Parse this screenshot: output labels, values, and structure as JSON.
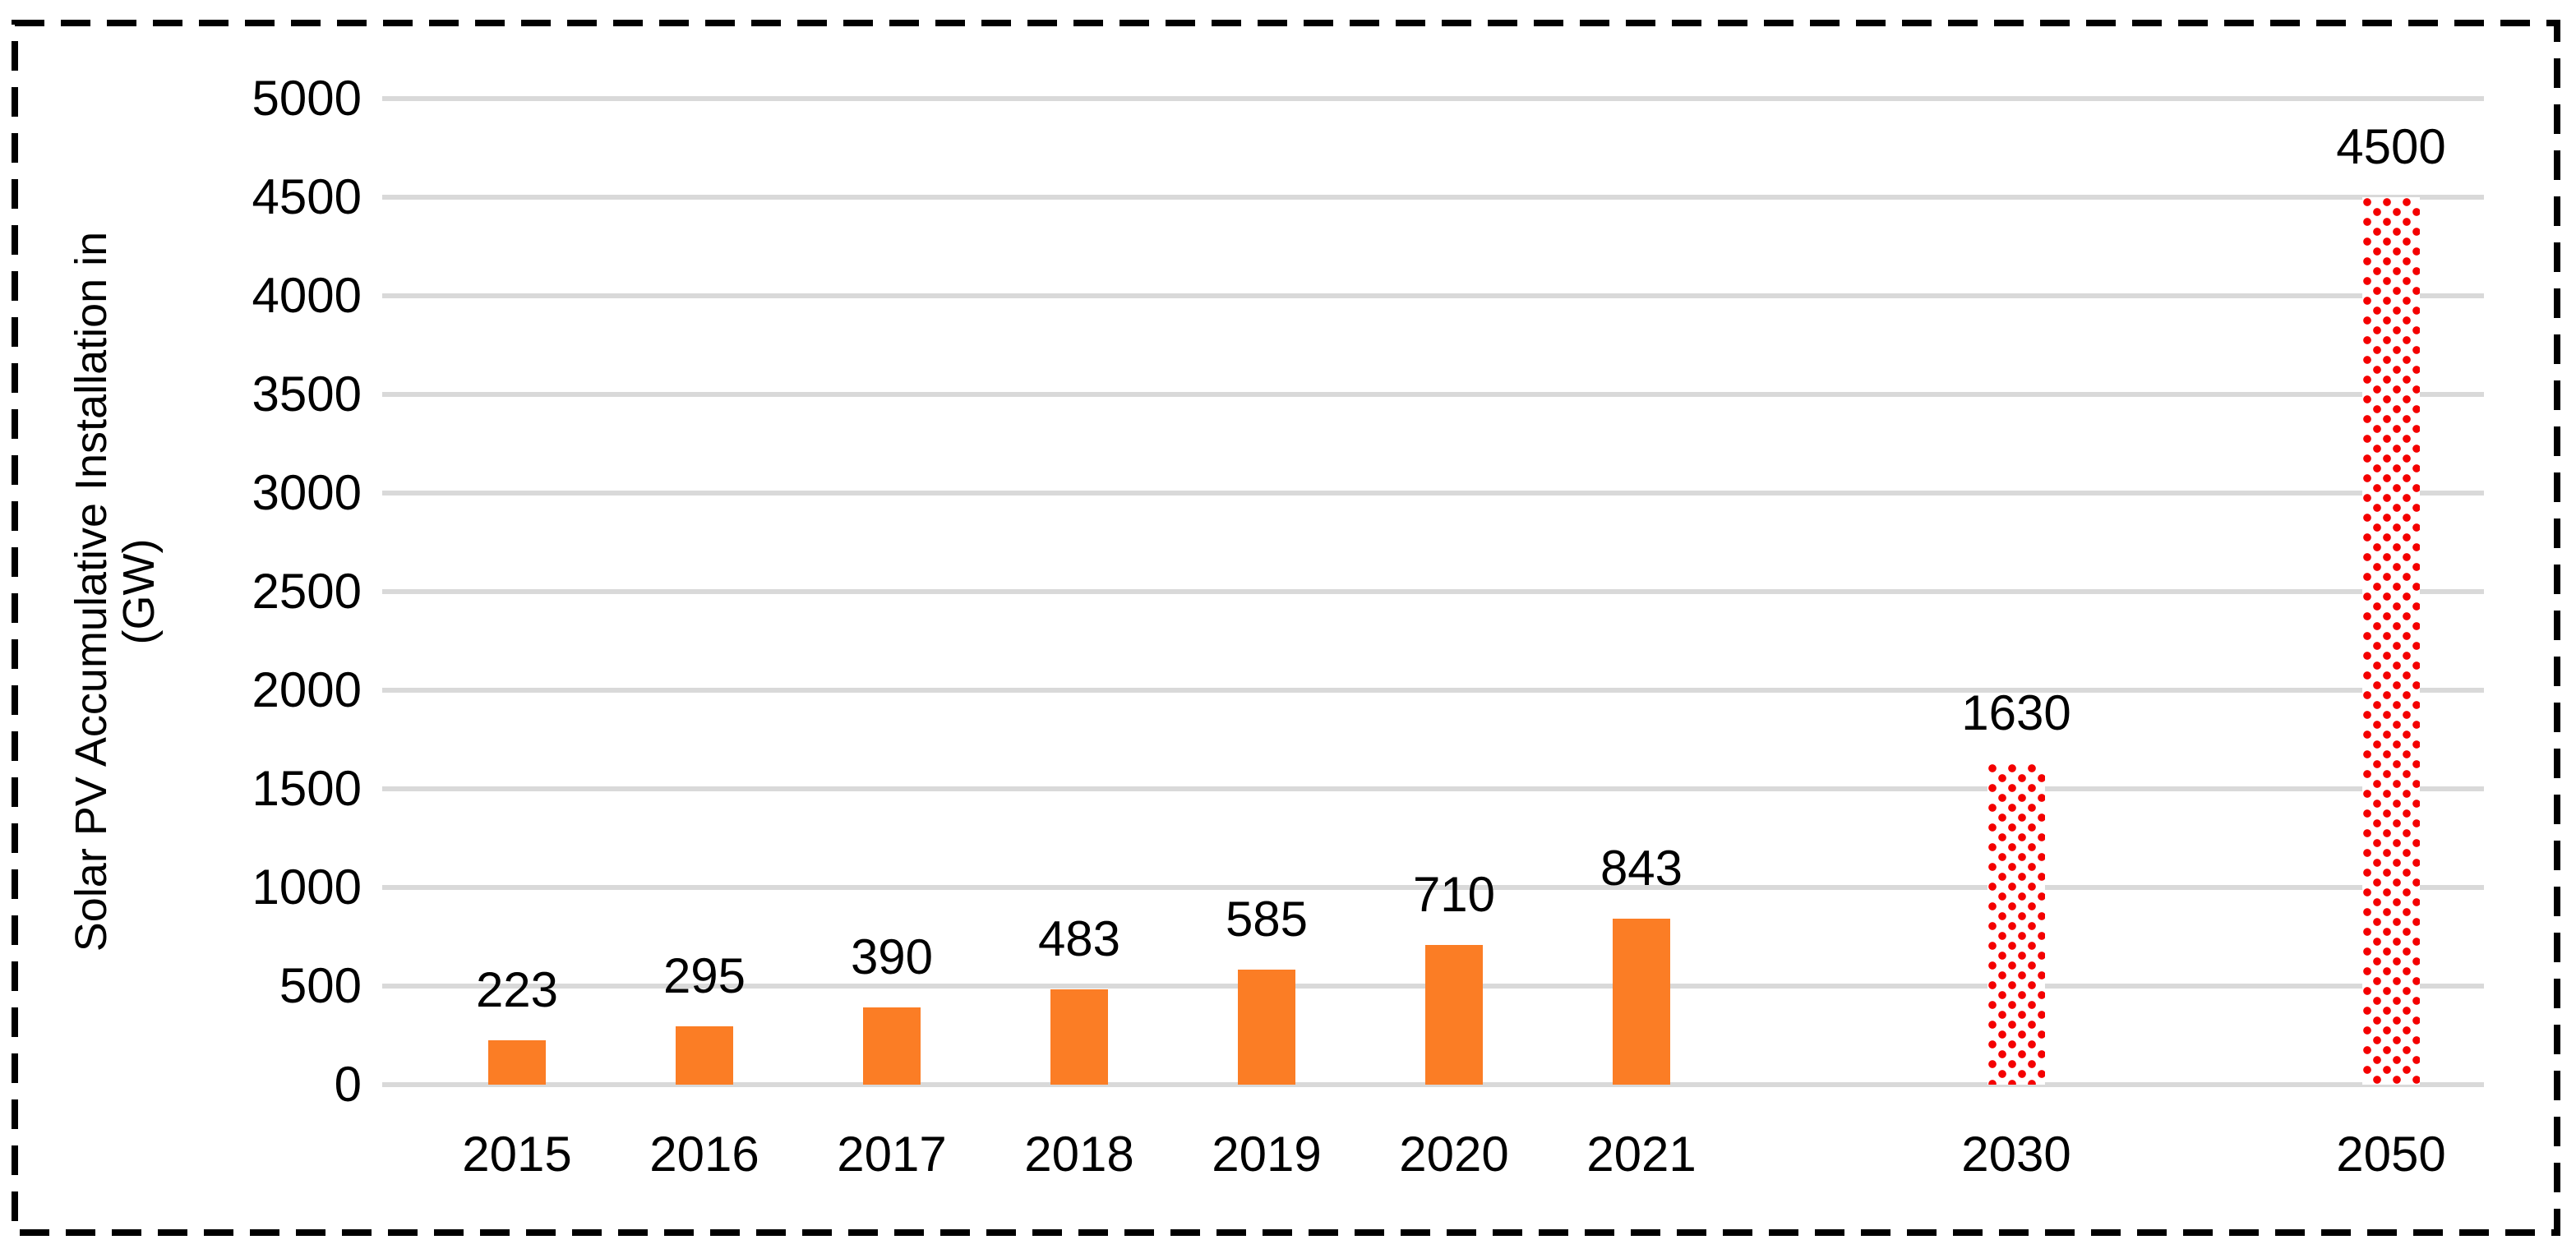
{
  "chart_data": {
    "type": "bar",
    "title": "",
    "ylabel": "Solar PV Accumulative Installation in (GW)",
    "ylabel_lines": [
      "Solar PV Accumulative Installation in",
      "(GW)"
    ],
    "xlabel": "",
    "categories": [
      "2015",
      "2016",
      "2017",
      "2018",
      "2019",
      "2020",
      "2021",
      "2030",
      "2050"
    ],
    "values": [
      223,
      295,
      390,
      483,
      585,
      710,
      843,
      1630,
      4500
    ],
    "value_labels": [
      "223",
      "295",
      "390",
      "483",
      "585",
      "710",
      "843",
      "1630",
      "4500"
    ],
    "bar_styles": [
      "solid",
      "solid",
      "solid",
      "solid",
      "solid",
      "solid",
      "solid",
      "red-dotted",
      "red-dotted"
    ],
    "slot_indices": [
      0,
      1,
      2,
      3,
      4,
      5,
      6,
      8,
      10
    ],
    "num_slots": 11,
    "ylim": [
      0,
      5000
    ],
    "ytick_step": 500,
    "ytick_labels": [
      "0",
      "500",
      "1000",
      "1500",
      "2000",
      "2500",
      "3000",
      "3500",
      "4000",
      "4500",
      "5000"
    ],
    "grid": true,
    "legend": "none",
    "colors": {
      "solid_bar": "#FB7D25",
      "dotted_bar_dot": "#F40000",
      "dotted_bar_bg": "#FFFFFF",
      "gridline": "#D9D9D9",
      "label_text": "#000000",
      "border": "#000000",
      "background": "#FFFFFF"
    }
  }
}
